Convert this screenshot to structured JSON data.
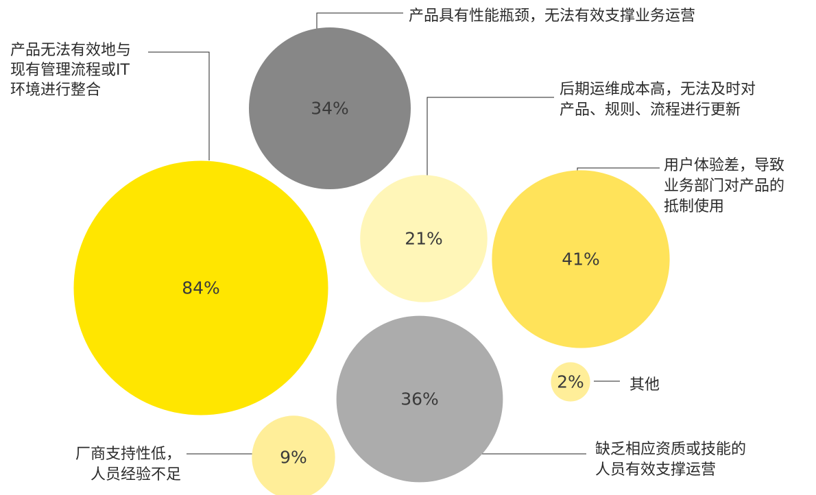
{
  "chart_data": {
    "type": "bubble",
    "unit": "%",
    "series": [
      {
        "value": 84,
        "value_label": "84%",
        "label_lines": [
          "产品无法有效地与",
          "现有管理流程或IT",
          "环境进行整合"
        ],
        "color": "#FFE600"
      },
      {
        "value": 34,
        "value_label": "34%",
        "label_lines": [
          "产品具有性能瓶颈，无法有效支撑业务运营"
        ],
        "color": "#878787"
      },
      {
        "value": 21,
        "value_label": "21%",
        "label_lines": [
          "后期运维成本高，无法及时对",
          "产品、规则、流程进行更新"
        ],
        "color": "#FFF6B8"
      },
      {
        "value": 41,
        "value_label": "41%",
        "label_lines": [
          "用户体验差，导致",
          "业务部门对产品的",
          "抵制使用"
        ],
        "color": "#FFE35A"
      },
      {
        "value": 36,
        "value_label": "36%",
        "label_lines": [
          "缺乏相应资质或技能的",
          "人员有效支撑运营"
        ],
        "color": "#ACACAC"
      },
      {
        "value": 9,
        "value_label": "9%",
        "label_lines": [
          "厂商支持性低，",
          "人员经验不足"
        ],
        "color": "#FFEE99"
      },
      {
        "value": 2,
        "value_label": "2%",
        "label_lines": [
          "其他"
        ],
        "color": "#FFEE99"
      }
    ]
  }
}
